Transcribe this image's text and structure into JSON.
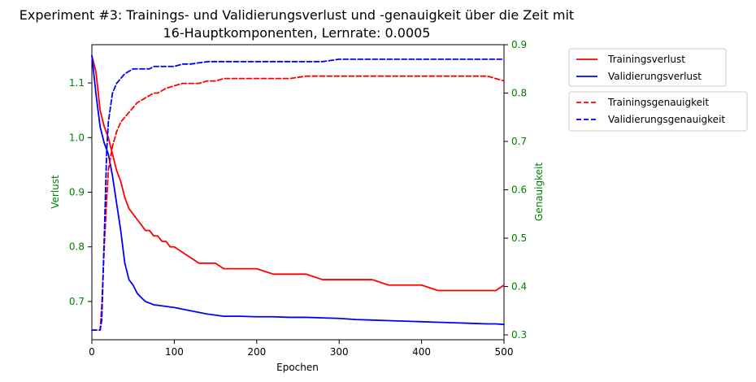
{
  "chart_data": {
    "type": "line",
    "title": "Experiment #3: Trainings- und Validierungsverlust und -genauigkeit über die Zeit mit",
    "subtitle": "16-Hauptkomponenten, Lernrate: 0.0005",
    "xlabel": "Epochen",
    "ylabel_left": "Verlust",
    "ylabel_right": "Genauigkeit",
    "x_range": [
      0,
      500
    ],
    "x_ticks": [
      0,
      100,
      200,
      300,
      400,
      500
    ],
    "y_left_range": [
      0.63,
      1.17
    ],
    "y_left_ticks": [
      0.7,
      0.8,
      0.9,
      1.0,
      1.1
    ],
    "y_right_range": [
      0.29,
      0.9
    ],
    "y_right_ticks": [
      0.3,
      0.4,
      0.5,
      0.6,
      0.7,
      0.8,
      0.9
    ],
    "grid": false,
    "legend_placement": "right, outside",
    "series": [
      {
        "name": "Trainingsverlust",
        "axis": "left",
        "style": "solid",
        "color": "#ff0000",
        "x": [
          0,
          5,
          10,
          15,
          20,
          25,
          30,
          35,
          40,
          45,
          50,
          55,
          60,
          65,
          70,
          75,
          80,
          85,
          90,
          95,
          100,
          110,
          120,
          130,
          140,
          150,
          160,
          170,
          180,
          190,
          200,
          220,
          240,
          260,
          280,
          300,
          320,
          340,
          360,
          380,
          400,
          420,
          440,
          460,
          480,
          490,
          500
        ],
        "y": [
          1.15,
          1.12,
          1.05,
          1.02,
          1.0,
          0.97,
          0.94,
          0.92,
          0.89,
          0.87,
          0.86,
          0.85,
          0.84,
          0.83,
          0.83,
          0.82,
          0.82,
          0.81,
          0.81,
          0.8,
          0.8,
          0.79,
          0.78,
          0.77,
          0.77,
          0.77,
          0.76,
          0.76,
          0.76,
          0.76,
          0.76,
          0.75,
          0.75,
          0.75,
          0.74,
          0.74,
          0.74,
          0.74,
          0.73,
          0.73,
          0.73,
          0.72,
          0.72,
          0.72,
          0.72,
          0.72,
          0.73
        ]
      },
      {
        "name": "Validierungsverlust",
        "axis": "left",
        "style": "solid",
        "color": "#0000ff",
        "x": [
          0,
          5,
          10,
          15,
          20,
          25,
          30,
          35,
          40,
          45,
          50,
          55,
          60,
          65,
          70,
          75,
          80,
          90,
          100,
          110,
          120,
          130,
          140,
          150,
          160,
          180,
          200,
          220,
          240,
          260,
          280,
          300,
          320,
          340,
          360,
          380,
          400,
          420,
          440,
          460,
          480,
          490,
          500
        ],
        "y": [
          1.15,
          1.08,
          1.02,
          0.99,
          0.97,
          0.93,
          0.88,
          0.83,
          0.77,
          0.74,
          0.73,
          0.715,
          0.707,
          0.7,
          0.697,
          0.694,
          0.693,
          0.691,
          0.689,
          0.686,
          0.683,
          0.68,
          0.677,
          0.675,
          0.673,
          0.673,
          0.672,
          0.672,
          0.671,
          0.671,
          0.67,
          0.669,
          0.667,
          0.666,
          0.665,
          0.664,
          0.663,
          0.662,
          0.661,
          0.66,
          0.659,
          0.659,
          0.658
        ]
      },
      {
        "name": "Trainingsgenauigkeit",
        "axis": "right",
        "style": "dashed",
        "color": "#ff0000",
        "x": [
          0,
          5,
          10,
          12,
          15,
          18,
          20,
          25,
          30,
          35,
          40,
          45,
          50,
          55,
          60,
          65,
          70,
          75,
          80,
          90,
          100,
          110,
          120,
          130,
          140,
          150,
          160,
          180,
          200,
          220,
          240,
          260,
          280,
          300,
          320,
          340,
          360,
          380,
          400,
          420,
          440,
          460,
          480,
          490,
          500
        ],
        "y": [
          0.31,
          0.31,
          0.31,
          0.36,
          0.48,
          0.58,
          0.64,
          0.69,
          0.72,
          0.74,
          0.75,
          0.76,
          0.77,
          0.78,
          0.785,
          0.79,
          0.795,
          0.8,
          0.8,
          0.81,
          0.815,
          0.82,
          0.82,
          0.82,
          0.825,
          0.825,
          0.83,
          0.83,
          0.83,
          0.83,
          0.83,
          0.835,
          0.835,
          0.835,
          0.835,
          0.835,
          0.835,
          0.835,
          0.835,
          0.835,
          0.835,
          0.835,
          0.835,
          0.83,
          0.825
        ]
      },
      {
        "name": "Validierungsgenauigkeit",
        "axis": "right",
        "style": "dashed",
        "color": "#0000ff",
        "x": [
          0,
          5,
          10,
          12,
          15,
          18,
          20,
          25,
          30,
          35,
          40,
          45,
          50,
          55,
          60,
          65,
          70,
          75,
          80,
          90,
          100,
          110,
          120,
          140,
          160,
          180,
          200,
          220,
          240,
          260,
          280,
          300,
          320,
          340,
          360,
          380,
          400,
          420,
          440,
          460,
          480,
          490,
          500
        ],
        "y": [
          0.31,
          0.31,
          0.31,
          0.33,
          0.5,
          0.68,
          0.74,
          0.8,
          0.82,
          0.83,
          0.84,
          0.845,
          0.85,
          0.85,
          0.85,
          0.85,
          0.85,
          0.855,
          0.855,
          0.855,
          0.855,
          0.86,
          0.86,
          0.865,
          0.865,
          0.865,
          0.865,
          0.865,
          0.865,
          0.865,
          0.865,
          0.87,
          0.87,
          0.87,
          0.87,
          0.87,
          0.87,
          0.87,
          0.87,
          0.87,
          0.87,
          0.87,
          0.87
        ]
      }
    ]
  }
}
